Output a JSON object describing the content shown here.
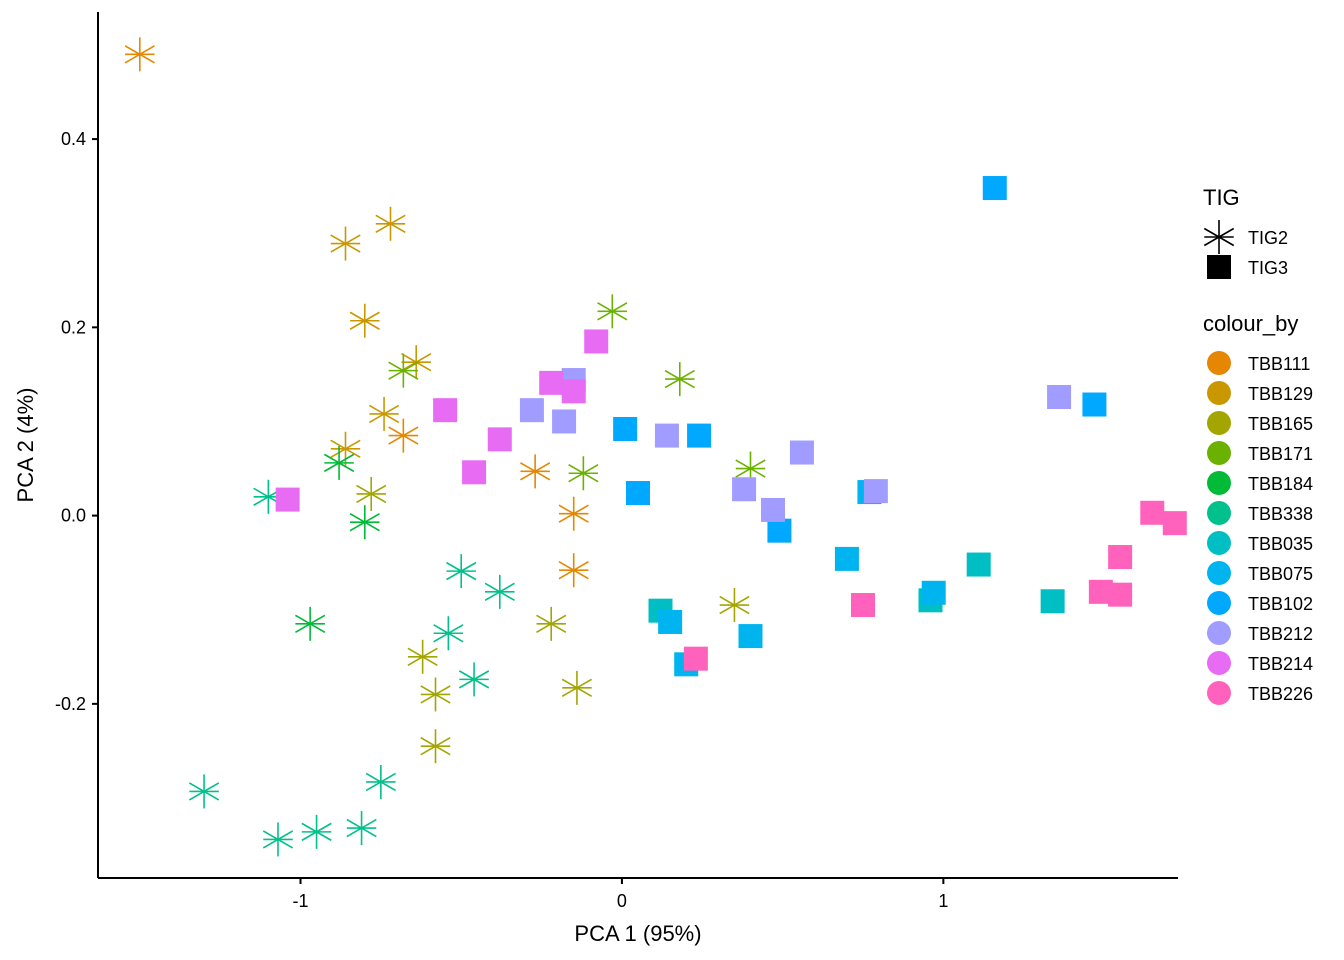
{
  "chart_data": {
    "type": "scatter",
    "title": "",
    "xlabel": "PCA 1 (95%)",
    "ylabel": "PCA 2 (4%)",
    "xlim": [
      -1.63,
      1.73
    ],
    "ylim": [
      -0.385,
      0.535
    ],
    "x_ticks": [
      -1,
      0,
      1
    ],
    "x_tick_labels": [
      "-1",
      "0",
      "1"
    ],
    "y_ticks": [
      -0.2,
      0.0,
      0.2,
      0.4
    ],
    "y_tick_labels": [
      "-0.2",
      "0.0",
      "0.2",
      "0.4"
    ],
    "grid": false,
    "legend_position": "right",
    "shape_legend": {
      "title": "TIG",
      "items": [
        {
          "label": "TIG2",
          "shape": "asterisk"
        },
        {
          "label": "TIG3",
          "shape": "square"
        }
      ]
    },
    "colour_legend": {
      "title": "colour_by",
      "items": [
        {
          "label": "TBB111",
          "color": "#E58700"
        },
        {
          "label": "TBB129",
          "color": "#C99800"
        },
        {
          "label": "TBB165",
          "color": "#A3A500"
        },
        {
          "label": "TBB171",
          "color": "#6BB100"
        },
        {
          "label": "TBB184",
          "color": "#00BA38"
        },
        {
          "label": "TBB338",
          "color": "#00C08B"
        },
        {
          "label": "TBB035",
          "color": "#00BFC4"
        },
        {
          "label": "TBB075",
          "color": "#00B4F0"
        },
        {
          "label": "TBB102",
          "color": "#00A9FF"
        },
        {
          "label": "TBB212",
          "color": "#A19CFF"
        },
        {
          "label": "TBB214",
          "color": "#E76BF3"
        },
        {
          "label": "TBB226",
          "color": "#FF62BC"
        }
      ]
    },
    "series": [
      {
        "name": "TBB111",
        "shape": "TIG2",
        "points": [
          [
            -1.5,
            0.49
          ],
          [
            -0.68,
            0.085
          ],
          [
            -0.27,
            0.047
          ],
          [
            -0.15,
            0.002
          ],
          [
            -0.15,
            -0.058
          ]
        ]
      },
      {
        "name": "TBB129",
        "shape": "TIG2",
        "points": [
          [
            -0.72,
            0.31
          ],
          [
            -0.86,
            0.289
          ],
          [
            -0.8,
            0.207
          ],
          [
            -0.64,
            0.163
          ],
          [
            -0.74,
            0.108
          ],
          [
            -0.86,
            0.071
          ]
        ]
      },
      {
        "name": "TBB165",
        "shape": "TIG2",
        "points": [
          [
            -0.78,
            0.023
          ],
          [
            -0.22,
            -0.115
          ],
          [
            -0.62,
            -0.15
          ],
          [
            -0.58,
            -0.19
          ],
          [
            -0.14,
            -0.183
          ],
          [
            -0.58,
            -0.245
          ],
          [
            0.35,
            -0.095
          ]
        ]
      },
      {
        "name": "TBB171",
        "shape": "TIG2",
        "points": [
          [
            -0.03,
            0.217
          ],
          [
            0.18,
            0.145
          ],
          [
            -0.68,
            0.154
          ],
          [
            -0.12,
            0.045
          ],
          [
            0.4,
            0.05
          ]
        ]
      },
      {
        "name": "TBB184",
        "shape": "TIG2",
        "points": [
          [
            -0.88,
            0.056
          ],
          [
            -0.8,
            -0.007
          ],
          [
            -0.97,
            -0.115
          ]
        ]
      },
      {
        "name": "TBB338",
        "shape": "TIG2",
        "points": [
          [
            -1.1,
            0.02
          ],
          [
            -0.5,
            -0.059
          ],
          [
            -0.38,
            -0.081
          ],
          [
            -0.54,
            -0.125
          ],
          [
            -0.46,
            -0.174
          ],
          [
            -1.3,
            -0.293
          ],
          [
            -0.75,
            -0.283
          ],
          [
            -1.07,
            -0.344
          ],
          [
            -0.95,
            -0.336
          ],
          [
            -0.81,
            -0.332
          ]
        ]
      },
      {
        "name": "TBB035",
        "shape": "TIG3",
        "points": [
          [
            1.11,
            -0.052
          ],
          [
            1.34,
            -0.091
          ],
          [
            0.12,
            -0.101
          ],
          [
            0.96,
            -0.09
          ]
        ]
      },
      {
        "name": "TBB075",
        "shape": "TIG3",
        "points": [
          [
            0.15,
            -0.113
          ],
          [
            0.2,
            -0.158
          ],
          [
            0.4,
            -0.128
          ],
          [
            0.7,
            -0.046
          ],
          [
            0.97,
            -0.082
          ],
          [
            0.77,
            0.025
          ]
        ]
      },
      {
        "name": "TBB102",
        "shape": "TIG3",
        "points": [
          [
            1.16,
            0.348
          ],
          [
            1.47,
            0.118
          ],
          [
            0.01,
            0.092
          ],
          [
            0.24,
            0.085
          ],
          [
            0.05,
            0.024
          ],
          [
            0.49,
            -0.016
          ]
        ]
      },
      {
        "name": "TBB212",
        "shape": "TIG3",
        "points": [
          [
            1.36,
            0.126
          ],
          [
            -0.28,
            0.112
          ],
          [
            -0.18,
            0.1
          ],
          [
            0.14,
            0.085
          ],
          [
            0.56,
            0.067
          ],
          [
            0.38,
            0.028
          ],
          [
            0.47,
            0.006
          ],
          [
            0.79,
            0.026
          ],
          [
            -0.15,
            0.144
          ]
        ]
      },
      {
        "name": "TBB214",
        "shape": "TIG3",
        "points": [
          [
            -0.08,
            0.185
          ],
          [
            -0.22,
            0.141
          ],
          [
            -0.15,
            0.132
          ],
          [
            -0.55,
            0.112
          ],
          [
            -0.38,
            0.081
          ],
          [
            -0.46,
            0.046
          ],
          [
            -1.04,
            0.017
          ]
        ]
      },
      {
        "name": "TBB226",
        "shape": "TIG3",
        "points": [
          [
            1.65,
            0.003
          ],
          [
            1.72,
            -0.008
          ],
          [
            1.55,
            -0.044
          ],
          [
            1.49,
            -0.081
          ],
          [
            1.55,
            -0.084
          ],
          [
            0.75,
            -0.095
          ],
          [
            0.23,
            -0.152
          ]
        ]
      }
    ]
  }
}
